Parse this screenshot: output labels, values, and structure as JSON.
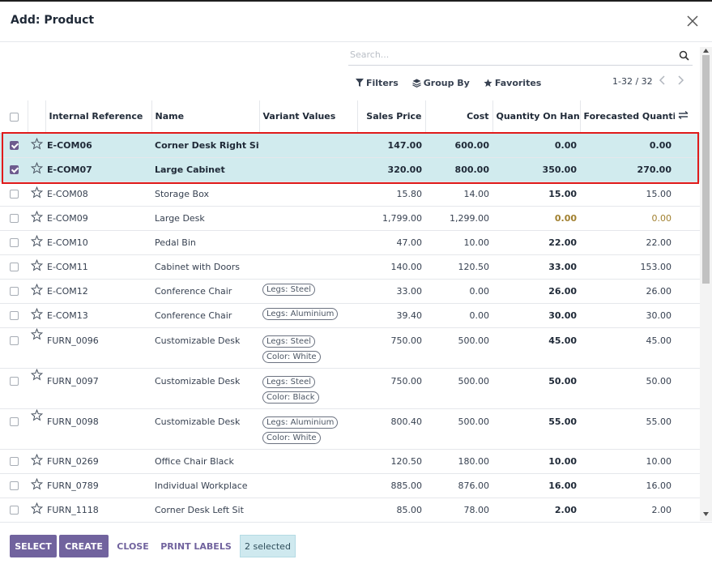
{
  "dialog": {
    "title": "Add: Product"
  },
  "search": {
    "placeholder": "Search..."
  },
  "toolbar": {
    "filters": "Filters",
    "group_by": "Group By",
    "favorites": "Favorites"
  },
  "pager": {
    "value": "1-32 / 32"
  },
  "columns": {
    "internal_reference": "Internal Reference",
    "name": "Name",
    "variant_values": "Variant Values",
    "sales_price": "Sales Price",
    "cost": "Cost",
    "qty_on_hand": "Quantity On Hand",
    "forecasted_qty": "Forecasted Quantity"
  },
  "rows": [
    {
      "ref": "E-COM06",
      "name": "Corner Desk Right Sit",
      "tags": [],
      "price": "147.00",
      "cost": "600.00",
      "onhand": "0.00",
      "forecast": "0.00",
      "selected": true
    },
    {
      "ref": "E-COM07",
      "name": "Large Cabinet",
      "tags": [],
      "price": "320.00",
      "cost": "800.00",
      "onhand": "350.00",
      "forecast": "270.00",
      "selected": true
    },
    {
      "ref": "E-COM08",
      "name": "Storage Box",
      "tags": [],
      "price": "15.80",
      "cost": "14.00",
      "onhand": "15.00",
      "forecast": "15.00",
      "selected": false
    },
    {
      "ref": "E-COM09",
      "name": "Large Desk",
      "tags": [],
      "price": "1,799.00",
      "cost": "1,299.00",
      "onhand": "0.00",
      "forecast": "0.00",
      "selected": false
    },
    {
      "ref": "E-COM10",
      "name": "Pedal Bin",
      "tags": [],
      "price": "47.00",
      "cost": "10.00",
      "onhand": "22.00",
      "forecast": "22.00",
      "selected": false
    },
    {
      "ref": "E-COM11",
      "name": "Cabinet with Doors",
      "tags": [],
      "price": "140.00",
      "cost": "120.50",
      "onhand": "33.00",
      "forecast": "153.00",
      "selected": false
    },
    {
      "ref": "E-COM12",
      "name": "Conference Chair",
      "tags": [
        "Legs: Steel"
      ],
      "price": "33.00",
      "cost": "0.00",
      "onhand": "26.00",
      "forecast": "26.00",
      "selected": false
    },
    {
      "ref": "E-COM13",
      "name": "Conference Chair",
      "tags": [
        "Legs: Aluminium"
      ],
      "price": "39.40",
      "cost": "0.00",
      "onhand": "30.00",
      "forecast": "30.00",
      "selected": false
    },
    {
      "ref": "FURN_0096",
      "name": "Customizable Desk",
      "tags": [
        "Legs: Steel",
        "Color: White"
      ],
      "price": "750.00",
      "cost": "500.00",
      "onhand": "45.00",
      "forecast": "45.00",
      "selected": false
    },
    {
      "ref": "FURN_0097",
      "name": "Customizable Desk",
      "tags": [
        "Legs: Steel",
        "Color: Black"
      ],
      "price": "750.00",
      "cost": "500.00",
      "onhand": "50.00",
      "forecast": "50.00",
      "selected": false
    },
    {
      "ref": "FURN_0098",
      "name": "Customizable Desk",
      "tags": [
        "Legs: Aluminium",
        "Color: White"
      ],
      "price": "800.40",
      "cost": "500.00",
      "onhand": "55.00",
      "forecast": "55.00",
      "selected": false
    },
    {
      "ref": "FURN_0269",
      "name": "Office Chair Black",
      "tags": [],
      "price": "120.50",
      "cost": "180.00",
      "onhand": "10.00",
      "forecast": "10.00",
      "selected": false
    },
    {
      "ref": "FURN_0789",
      "name": "Individual Workplace",
      "tags": [],
      "price": "885.00",
      "cost": "876.00",
      "onhand": "16.00",
      "forecast": "16.00",
      "selected": false
    },
    {
      "ref": "FURN_1118",
      "name": "Corner Desk Left Sit",
      "tags": [],
      "price": "85.00",
      "cost": "78.00",
      "onhand": "2.00",
      "forecast": "2.00",
      "selected": false
    }
  ],
  "footer": {
    "select": "SELECT",
    "create": "CREATE",
    "close": "CLOSE",
    "print_labels": "PRINT LABELS",
    "selected_count": "2 selected"
  },
  "colors": {
    "accent": "#71639e",
    "selected_row": "#d1ebee",
    "warning_qty": "#a1802f",
    "highlight_box": "#e01b1b"
  },
  "icons": [
    "close-icon",
    "search-icon",
    "filter-icon",
    "layers-icon",
    "star-icon",
    "chevron-left-icon",
    "chevron-right-icon",
    "column-settings-icon"
  ]
}
